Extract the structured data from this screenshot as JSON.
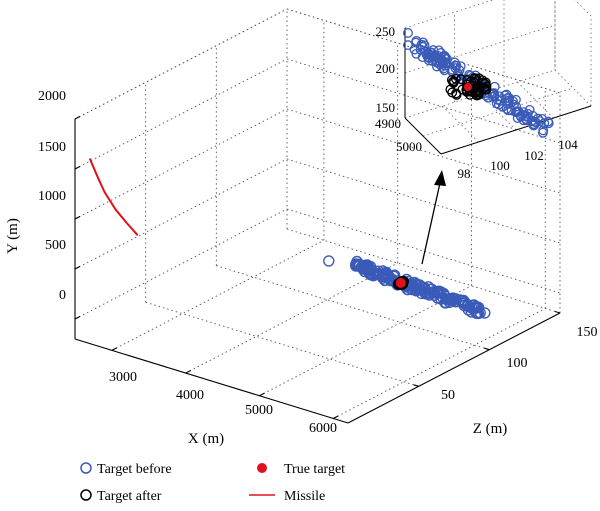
{
  "chart_data": [
    {
      "type": "scatter",
      "xlabel": "X (m)",
      "ylabel": "Y (m)",
      "zlabel": "Z (m)",
      "xlim": [
        2500,
        6200
      ],
      "ylim": [
        -200,
        2000
      ],
      "zlim": [
        0,
        150
      ],
      "x_ticks": [
        "3000",
        "4000",
        "5000",
        "6000"
      ],
      "y_ticks": [
        "0",
        "500",
        "1000",
        "1500",
        "2000"
      ],
      "z_ticks": [
        "50",
        "100",
        "150"
      ],
      "grid": true,
      "legend": [
        {
          "label": "Target before",
          "marker": "open-circle",
          "color": "#3a5bb8"
        },
        {
          "label": "Target after",
          "marker": "open-circle",
          "color": "#000000"
        },
        {
          "label": "True target",
          "marker": "filled-circle",
          "color": "#e0101f"
        },
        {
          "label": "Missile",
          "marker": "line",
          "color": "#e0101f"
        }
      ],
      "legend_placement": "bottom",
      "series": [
        {
          "name": "Missile",
          "type": "line3d",
          "points": [
            {
              "x": 2700,
              "y": 1650,
              "z": 0
            },
            {
              "x": 2800,
              "y": 1500,
              "z": 0
            },
            {
              "x": 2900,
              "y": 1360,
              "z": 0
            },
            {
              "x": 3050,
              "y": 1220,
              "z": 0
            },
            {
              "x": 3200,
              "y": 1120,
              "z": 0
            },
            {
              "x": 3350,
              "y": 1030,
              "z": 0
            }
          ]
        },
        {
          "name": "Target before",
          "type": "scatter3d",
          "cluster_endpoints": [
            {
              "x": 4950,
              "y": 50,
              "z": 95
            },
            {
              "x": 5050,
              "y": 150,
              "z": 105
            }
          ],
          "outliers": [
            {
              "x": 4250,
              "y": 130,
              "z": 97
            }
          ]
        },
        {
          "name": "Target after",
          "type": "scatter3d",
          "center": {
            "x": 5000,
            "y": 195,
            "z": 100
          }
        },
        {
          "name": "True target",
          "type": "point3d",
          "point": {
            "x": 5000,
            "y": 195,
            "z": 100
          }
        }
      ]
    },
    {
      "type": "scatter",
      "role": "inset",
      "ylim": [
        150,
        250
      ],
      "y_ticks": [
        "150",
        "200",
        "250"
      ],
      "x_ticks": [
        "4900",
        "5000"
      ],
      "z_ticks": [
        "98",
        "100",
        "102",
        "104"
      ],
      "grid": true
    }
  ]
}
